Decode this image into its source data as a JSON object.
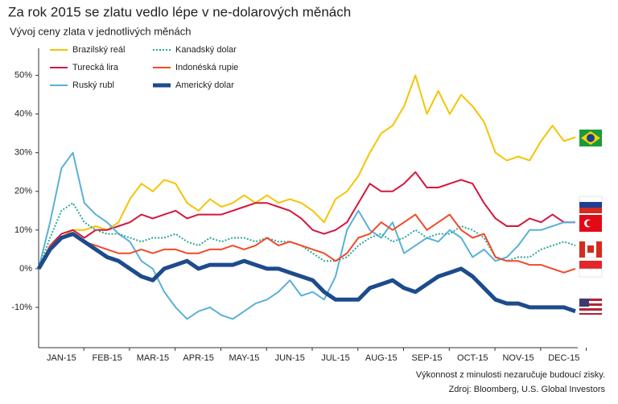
{
  "chart_data": {
    "type": "line",
    "title": "Za rok 2015 se zlatu vedlo lépe v ne-dolarových měnách",
    "subtitle": "Vývoj ceny zlata v jednotlivých měnách",
    "categories": [
      null,
      null,
      "JAN-15",
      null,
      null,
      null,
      "FEB-15",
      null,
      null,
      null,
      "MAR-15",
      null,
      null,
      null,
      "APR-15",
      null,
      null,
      null,
      "MAY-15",
      null,
      null,
      null,
      "JUN-15",
      null,
      null,
      null,
      "JUL-15",
      null,
      null,
      null,
      "AUG-15",
      null,
      null,
      null,
      "SEP-15",
      null,
      null,
      null,
      "OCT-15",
      null,
      null,
      null,
      "NOV-15",
      null,
      null,
      null,
      "DEC-15",
      null
    ],
    "ylim": [
      -20,
      57
    ],
    "yticks": [
      {
        "value": -10,
        "label": "-10%"
      },
      {
        "value": 0,
        "label": "0%"
      },
      {
        "value": 10,
        "label": "10%"
      },
      {
        "value": 20,
        "label": "20%"
      },
      {
        "value": 30,
        "label": "30%"
      },
      {
        "value": 40,
        "label": "40%"
      },
      {
        "value": 50,
        "label": "50%"
      }
    ],
    "series": [
      {
        "name": "Brazilský reál",
        "color": "#f5c400",
        "width": 2,
        "dashed": false,
        "values": [
          0,
          5,
          8,
          10,
          10,
          11,
          10,
          12,
          18,
          22,
          20,
          23,
          22,
          17,
          15,
          18,
          16,
          17,
          19,
          17,
          19,
          17,
          18,
          17,
          15,
          12,
          18,
          20,
          24,
          30,
          35,
          37,
          42,
          50,
          40,
          46,
          40,
          45,
          42,
          38,
          30,
          28,
          29,
          28,
          33,
          37,
          33,
          34
        ]
      },
      {
        "name": "Turecká lira",
        "color": "#d4163c",
        "width": 2,
        "dashed": false,
        "values": [
          0,
          6,
          9,
          10,
          8,
          10,
          10,
          11,
          12,
          14,
          13,
          14,
          15,
          13,
          14,
          14,
          14,
          15,
          16,
          17,
          17,
          16,
          15,
          13,
          10,
          9,
          10,
          12,
          17,
          22,
          20,
          20,
          22,
          25,
          21,
          21,
          22,
          23,
          22,
          17,
          13,
          11,
          11,
          13,
          12,
          14,
          12,
          12
        ]
      },
      {
        "name": "Ruský rubl",
        "color": "#5ab0d8",
        "width": 2,
        "dashed": false,
        "values": [
          0,
          12,
          26,
          30,
          17,
          14,
          12,
          9,
          7,
          2,
          0,
          -6,
          -10,
          -13,
          -11,
          -10,
          -12,
          -13,
          -11,
          -9,
          -8,
          -6,
          -3,
          -7,
          -6,
          -8,
          -2,
          10,
          15,
          10,
          8,
          12,
          4,
          6,
          8,
          7,
          10,
          8,
          3,
          5,
          2,
          3,
          6,
          10,
          10,
          11,
          12,
          12
        ]
      },
      {
        "name": "Kanadský dolar",
        "color": "#2aa79b",
        "width": 2,
        "dashed": true,
        "values": [
          0,
          8,
          15,
          17,
          12,
          10,
          9,
          9,
          8,
          7,
          8,
          8,
          9,
          7,
          6,
          8,
          7,
          8,
          8,
          7,
          8,
          7,
          7,
          6,
          4,
          2,
          2,
          3,
          6,
          8,
          9,
          7,
          8,
          10,
          8,
          9,
          9,
          11,
          10,
          8,
          3,
          2,
          3,
          3,
          5,
          6,
          7,
          6
        ]
      },
      {
        "name": "Indonéská rupie",
        "color": "#f04a2a",
        "width": 2,
        "dashed": false,
        "values": [
          0,
          6,
          8,
          9,
          7,
          6,
          5,
          4,
          4,
          5,
          4,
          5,
          5,
          4,
          4,
          5,
          5,
          6,
          5,
          6,
          8,
          6,
          7,
          6,
          5,
          4,
          2,
          4,
          8,
          9,
          12,
          10,
          12,
          14,
          10,
          12,
          14,
          10,
          8,
          9,
          3,
          2,
          2,
          1,
          1,
          0,
          -1,
          0
        ]
      },
      {
        "name": "Americký dolar",
        "color": "#1d4b8c",
        "width": 5,
        "dashed": false,
        "values": [
          0,
          5,
          8,
          9,
          7,
          5,
          3,
          2,
          0,
          -2,
          -3,
          0,
          1,
          2,
          0,
          1,
          1,
          1,
          2,
          1,
          0,
          0,
          -1,
          -2,
          -3,
          -6,
          -8,
          -8,
          -8,
          -5,
          -4,
          -3,
          -5,
          -6,
          -4,
          -2,
          -1,
          0,
          -2,
          -5,
          -8,
          -9,
          -9,
          -10,
          -10,
          -10,
          -10,
          -11
        ]
      }
    ],
    "notes": [
      "Výkonnost z minulosti nezaručuje budoucí zisky.",
      "Zdroj: Bloomberg, U.S. Global Investors"
    ]
  }
}
